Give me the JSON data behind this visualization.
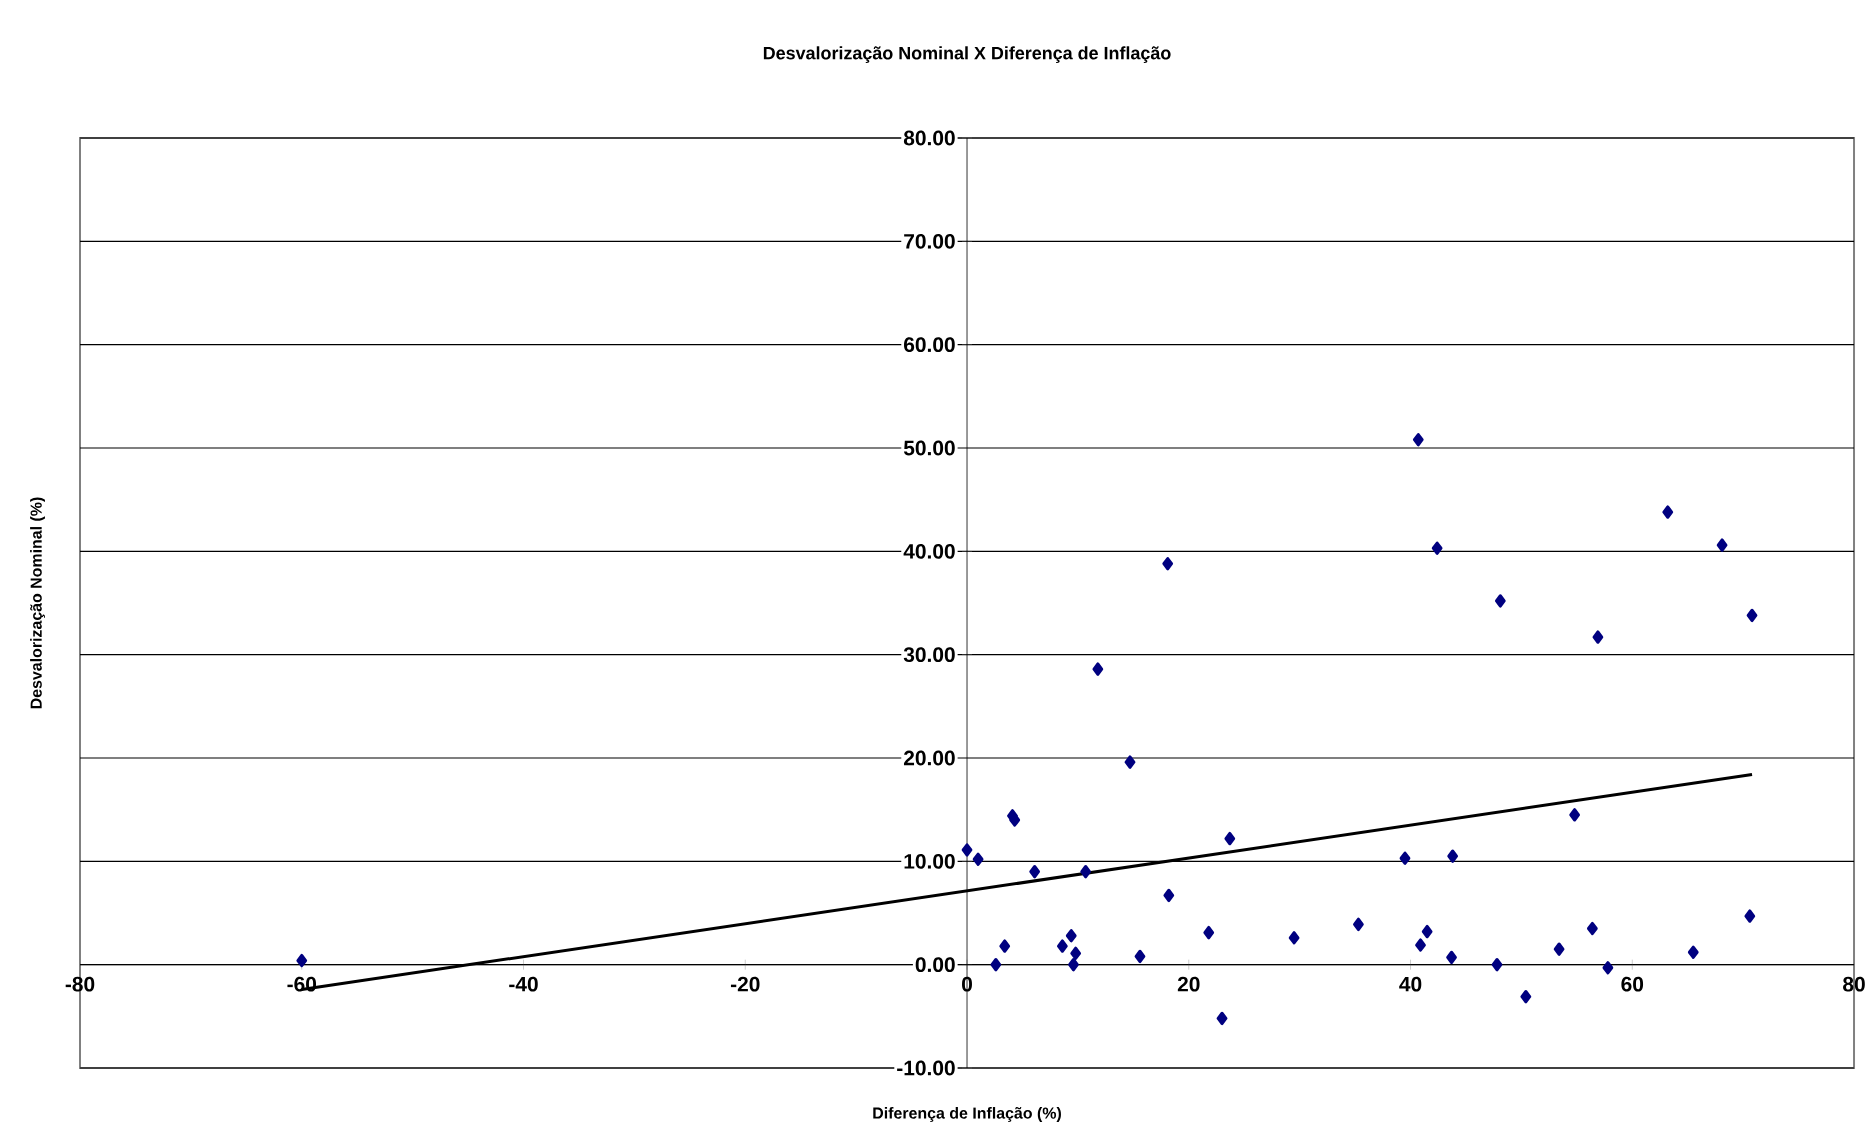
{
  "chart_data": {
    "type": "scatter",
    "title": "Desvalorização Nominal X Diferença de Inflação",
    "xlabel": "Diferença de Inflação (%)",
    "ylabel": "Desvalorização Nominal (%)",
    "xlim": [
      -80,
      80
    ],
    "xticks": [
      -80,
      -60,
      -40,
      -20,
      0,
      20,
      40,
      60,
      80
    ],
    "ylim": [
      -10,
      80
    ],
    "yticks": [
      {
        "value": -10,
        "label": "-10.00"
      },
      {
        "value": 0,
        "label": "0.00"
      },
      {
        "value": 10,
        "label": "10.00"
      },
      {
        "value": 20,
        "label": "20.00"
      },
      {
        "value": 30,
        "label": "30.00"
      },
      {
        "value": 40,
        "label": "40.00"
      },
      {
        "value": 50,
        "label": "50.00"
      },
      {
        "value": 60,
        "label": "60.00"
      },
      {
        "value": 70,
        "label": "70.00"
      },
      {
        "value": 80,
        "label": "80.00"
      }
    ],
    "grid": "y",
    "marker": "diamond",
    "series": [
      {
        "color": "#000080",
        "x": [
          -60,
          0,
          1.0,
          4.1,
          4.3,
          6.1,
          2.6,
          3.4,
          8.6,
          9.4,
          9.8,
          9.6,
          10.7,
          11.8,
          14.7,
          15.6,
          18.1,
          18.2,
          21.8,
          23.7,
          23.0,
          29.5,
          35.3,
          39.5,
          40.7,
          42.4,
          43.8,
          40.9,
          41.5,
          43.7,
          47.8,
          48.1,
          50.4,
          53.4,
          54.8,
          56.4,
          56.9,
          57.8,
          63.2,
          65.5,
          68.1,
          70.8,
          70.6
        ],
        "values": [
          0.4,
          11.1,
          10.2,
          14.4,
          14.0,
          9.0,
          0.0,
          1.8,
          1.8,
          2.8,
          1.1,
          0.0,
          9.0,
          28.6,
          19.6,
          0.8,
          38.8,
          6.7,
          3.1,
          12.2,
          -5.2,
          2.6,
          3.9,
          10.3,
          50.8,
          40.3,
          10.5,
          1.9,
          3.2,
          0.7,
          0.0,
          35.2,
          -3.1,
          1.5,
          14.5,
          3.5,
          31.7,
          -0.3,
          43.8,
          1.2,
          40.6,
          33.8,
          4.7
        ]
      },
      {
        "type": "line",
        "color": "#000000",
        "marker": "none",
        "line_style": "solid",
        "x": [
          -60,
          70.8
        ],
        "values": [
          -2.4,
          18.4
        ]
      }
    ]
  }
}
